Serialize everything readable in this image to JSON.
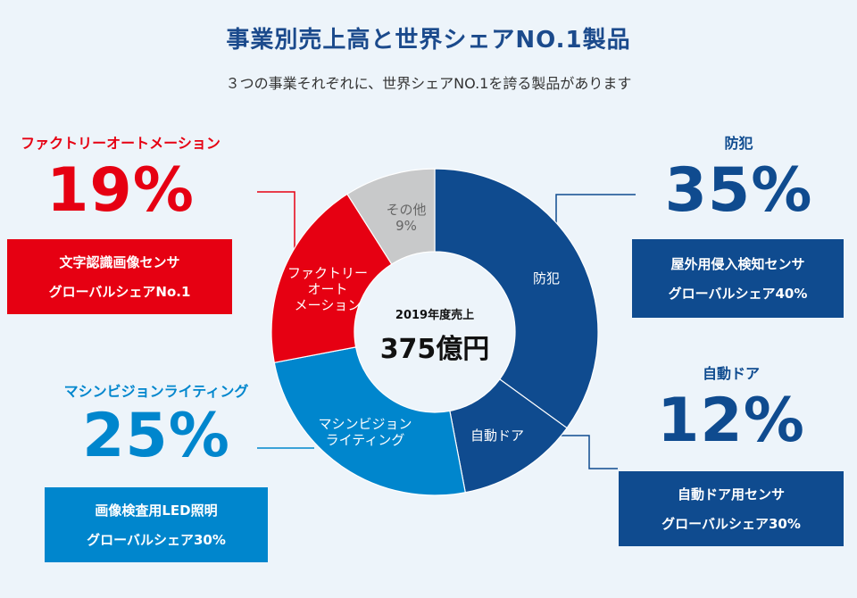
{
  "title": "事業別売上高と世界シェアNO.1製品",
  "subtitle": "３つの事業それぞれに、世界シェアNO.1を誇る製品があります",
  "chart_data": {
    "type": "pie",
    "center_label": "2019年度売上",
    "center_value": "375億円",
    "slices": [
      {
        "name": "防犯",
        "value": 35,
        "color": "#0f4b8f",
        "label_lines": [
          "防犯"
        ]
      },
      {
        "name": "自動ドア",
        "value": 12,
        "color": "#0f4b8f",
        "label_lines": [
          "自動ドア"
        ]
      },
      {
        "name": "マシンビジョンライティング",
        "value": 25,
        "color": "#0086cd",
        "label_lines": [
          "マシンビジョン",
          "ライティング"
        ]
      },
      {
        "name": "ファクトリーオートメーション",
        "value": 19,
        "color": "#e60012",
        "label_lines": [
          "ファクトリー",
          "オート",
          "メーション"
        ]
      },
      {
        "name": "その他",
        "value": 9,
        "color": "#c8c9ca",
        "label_lines": [
          "その他",
          "9%"
        ]
      }
    ]
  },
  "segments": {
    "fa": {
      "name": "ファクトリーオートメーション",
      "pct": "19%",
      "product": "文字認識画像センサ",
      "share": "グローバルシェアNo.1"
    },
    "mv": {
      "name": "マシンビジョンライティング",
      "pct": "25%",
      "product": "画像検査用LED照明",
      "share": "グローバルシェア30%"
    },
    "security": {
      "name": "防犯",
      "pct": "35%",
      "product": "屋外用侵入検知センサ",
      "share": "グローバルシェア40%"
    },
    "door": {
      "name": "自動ドア",
      "pct": "12%",
      "product": "自動ドア用センサ",
      "share": "グローバルシェア30%"
    }
  },
  "colors": {
    "red": "#e60012",
    "light_blue": "#0086cd",
    "navy": "#0f4b8f",
    "gray": "#c8c9ca",
    "background": "#edf4fa"
  }
}
